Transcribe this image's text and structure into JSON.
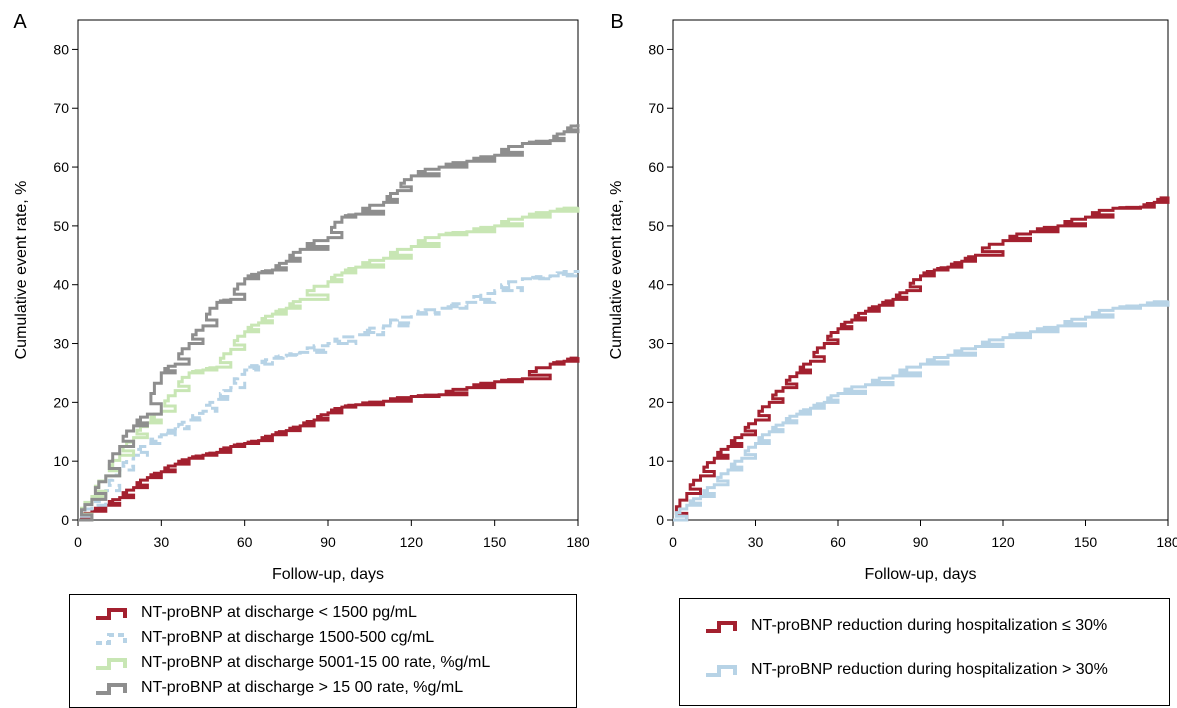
{
  "chart_data": [
    {
      "type": "line",
      "panel_label": "A",
      "xlabel": "Follow-up, days",
      "ylabel": "Cumulative event rate, %",
      "xlim": [
        0,
        180
      ],
      "ylim": [
        0,
        85
      ],
      "xticks": [
        "0",
        "30",
        "60",
        "90",
        "120",
        "150",
        "180"
      ],
      "yticks": [
        "0",
        "10",
        "20",
        "30",
        "40",
        "50",
        "60",
        "70",
        "80"
      ],
      "step": true,
      "legend_placement": "below",
      "series": [
        {
          "name": "NT-proBNP at discharge < 1500 pg/mL",
          "color": "#a3202f",
          "dash": "solid",
          "x": [
            0,
            5,
            10,
            15,
            20,
            25,
            30,
            35,
            40,
            45,
            50,
            55,
            60,
            65,
            70,
            75,
            80,
            85,
            90,
            95,
            100,
            110,
            120,
            130,
            140,
            150,
            160,
            170,
            175,
            180
          ],
          "y": [
            0,
            1.5,
            2.5,
            3.8,
            5.5,
            7.2,
            8.2,
            9.5,
            10.5,
            11,
            11.5,
            12.5,
            13,
            13.5,
            14.5,
            15.2,
            16,
            17,
            18.2,
            19.2,
            19.6,
            20.2,
            21,
            21.3,
            22.5,
            23.5,
            24,
            26.5,
            27,
            27.7
          ]
        },
        {
          "name": "NT-proBNP at discharge 1500-500 cg/mL",
          "color": "#b7d3e6",
          "dash": "dashed",
          "x": [
            0,
            5,
            10,
            15,
            20,
            25,
            30,
            35,
            40,
            45,
            50,
            55,
            60,
            65,
            70,
            75,
            80,
            90,
            100,
            110,
            120,
            130,
            140,
            150,
            160,
            170,
            180
          ],
          "y": [
            0,
            2.5,
            5,
            8.5,
            11,
            13,
            14.5,
            15.5,
            17,
            18.5,
            20.5,
            22.5,
            25.5,
            26.5,
            27.5,
            28,
            28.5,
            30,
            31.5,
            33,
            35,
            36,
            37,
            39,
            41,
            41.5,
            42.5
          ]
        },
        {
          "name": "NT-proBNP at discharge 5001-15 00 rate, %g/mL",
          "color": "#c8e6b4",
          "dash": "solid",
          "x": [
            0,
            5,
            10,
            15,
            20,
            25,
            30,
            35,
            40,
            45,
            50,
            55,
            60,
            65,
            70,
            75,
            80,
            90,
            95,
            100,
            110,
            120,
            130,
            140,
            150,
            160,
            170,
            180
          ],
          "y": [
            0,
            4,
            7.5,
            11,
            14,
            16.5,
            18.5,
            22,
            25,
            25.5,
            26,
            29,
            32,
            33.5,
            35,
            36,
            37.5,
            40.5,
            42,
            43,
            44.5,
            46.5,
            48.5,
            49,
            50,
            51.5,
            52.5,
            53.2
          ]
        },
        {
          "name": "NT-proBNP at discharge > 15 00 rate, %g/mL",
          "color": "#8e8e8e",
          "dash": "solid",
          "x": [
            0,
            5,
            10,
            15,
            20,
            25,
            30,
            35,
            40,
            45,
            50,
            55,
            60,
            65,
            70,
            75,
            80,
            90,
            95,
            100,
            110,
            115,
            120,
            130,
            140,
            150,
            160,
            170,
            175,
            180
          ],
          "y": [
            0,
            3.5,
            7.5,
            12.5,
            16,
            18,
            25,
            26.5,
            30,
            33,
            37,
            37.5,
            41,
            42,
            42.5,
            44,
            46,
            48,
            51.5,
            52,
            54,
            56,
            58.5,
            60,
            61,
            62,
            64,
            64.5,
            66,
            67.3
          ]
        }
      ]
    },
    {
      "type": "line",
      "panel_label": "B",
      "xlabel": "Follow-up, days",
      "ylabel": "Cumulative event rate, %",
      "xlim": [
        0,
        180
      ],
      "ylim": [
        0,
        85
      ],
      "xticks": [
        "0",
        "30",
        "60",
        "90",
        "120",
        "150",
        "180"
      ],
      "yticks": [
        "0",
        "10",
        "20",
        "30",
        "40",
        "50",
        "60",
        "70",
        "80"
      ],
      "step": true,
      "legend_placement": "below",
      "series": [
        {
          "name": "NT-proBNP reduction during hospitalization ≤ 30%",
          "color": "#a3202f",
          "dash": "solid",
          "x": [
            0,
            5,
            10,
            15,
            20,
            25,
            30,
            35,
            40,
            45,
            50,
            55,
            60,
            65,
            70,
            75,
            80,
            85,
            90,
            95,
            100,
            105,
            110,
            120,
            130,
            140,
            150,
            160,
            170,
            175,
            180
          ],
          "y": [
            0,
            4.5,
            7.5,
            10.5,
            12.5,
            14.5,
            17,
            20,
            22.5,
            25,
            27,
            30,
            32.5,
            34,
            35.5,
            36.5,
            37.5,
            39,
            41.5,
            42.5,
            43,
            44,
            45,
            47.5,
            49,
            50,
            51.5,
            53,
            53.2,
            54,
            55
          ]
        },
        {
          "name": "NT-proBNP reduction during hospitalization > 30%",
          "color": "#b7d3e6",
          "dash": "solid",
          "x": [
            0,
            5,
            10,
            15,
            20,
            25,
            30,
            35,
            40,
            45,
            50,
            55,
            60,
            70,
            80,
            90,
            100,
            110,
            120,
            130,
            140,
            150,
            160,
            170,
            180
          ],
          "y": [
            0,
            2.5,
            4,
            6,
            8.5,
            10.5,
            13,
            15,
            16.5,
            18,
            19,
            20,
            21.5,
            23,
            24.5,
            26.5,
            28,
            29.5,
            31,
            32,
            33,
            34.5,
            36,
            36.5,
            37.3
          ]
        }
      ]
    }
  ]
}
